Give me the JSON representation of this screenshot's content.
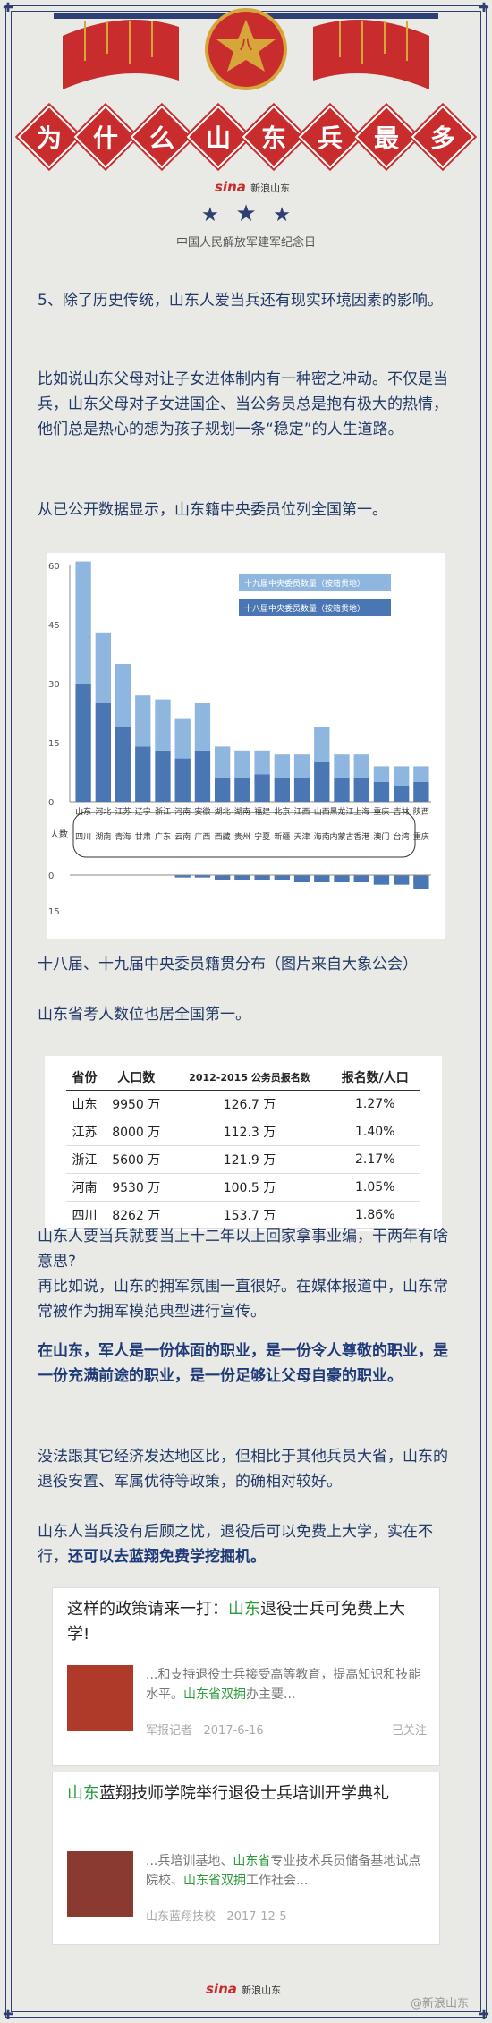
{
  "header": {
    "badge_text": "八",
    "title_chars": [
      "为",
      "什",
      "么",
      "山",
      "东",
      "兵",
      "最",
      "多"
    ],
    "sina_logo": "sina",
    "sina_logo_sub": "新浪山东",
    "subtitle": "中国人民解放军建军纪念日"
  },
  "paragraphs": {
    "p1": "5、除了历史传统，山东人爱当兵还有现实环境因素的影响。",
    "p2": "比如说山东父母对让子女进体制内有一种密之冲动。不仅是当兵，山东父母对子女进国企、当公务员总是抱有极大的热情，他们总是热心的想为孩子规划一条“稳定”的人生道路。",
    "p3": "从已公开数据显示，山东籍中央委员位列全国第一。",
    "p4": "十八届、十九届中央委员籍贯分布（图片来自大象公会）",
    "p5": "山东省考人数位也居全国第一。",
    "p6": "山东人要当兵就要当上十二年以上回家拿事业编，干两年有啥意思?",
    "p7": "再比如说，山东的拥军氛围一直很好。在媒体报道中，山东常常被作为拥军模范典型进行宣传。",
    "p8": "在山东，军人是一份体面的职业，是一份令人尊敬的职业，是一份充满前途的职业，是一份足够让父母自豪的职业。",
    "p9": "没法跟其它经济发达地区比，但相比于其他兵员大省，山东的退役安置、军属优待等政策，的确相对较好。",
    "p10a": "山东人当兵没有后顾之忧，退役后可以免费上大学，实在不行，",
    "p10b": "还可以去蓝翔免费学挖掘机。"
  },
  "chart_data": {
    "type": "bar",
    "legend": [
      "十九届中央委员数量（按籍贯地）",
      "十八届中央委员数量（按籍贯地）"
    ],
    "ylabel": "人数",
    "ylim_top": [
      0,
      60
    ],
    "ylim_bottom": [
      0,
      15
    ],
    "y_ticks_top": [
      "60",
      "45",
      "30",
      "15",
      "0"
    ],
    "y_ticks_bottom": [
      "0",
      "15"
    ],
    "categories": [
      "山东",
      "河北",
      "江苏",
      "辽宁",
      "浙江",
      "河南",
      "安徽",
      "湖北",
      "湖南",
      "福建",
      "北京",
      "江西",
      "山西",
      "黑龙江",
      "上海",
      "重庆",
      "吉林",
      "陕西"
    ],
    "series": [
      {
        "name": "十九届中央委员数量（按籍贯地）",
        "values": [
          31,
          18,
          16,
          13,
          13,
          10,
          12,
          8,
          7,
          6,
          6,
          6,
          9,
          6,
          6,
          4,
          5,
          4
        ]
      },
      {
        "name": "十八届中央委员数量（按籍贯地）",
        "values": [
          30,
          25,
          19,
          14,
          13,
          11,
          13,
          6,
          6,
          7,
          6,
          6,
          10,
          6,
          6,
          5,
          4,
          5
        ]
      }
    ],
    "bottom_categories": [
      "四川",
      "湖南",
      "青海",
      "甘肃",
      "广东",
      "云南",
      "广西",
      "西藏",
      "贵州",
      "宁夏",
      "新疆",
      "天津",
      "海南",
      "内蒙古",
      "香港",
      "澳门",
      "台湾",
      "重庆"
    ],
    "bottom_values": [
      0,
      0,
      0,
      0,
      0,
      1,
      1,
      2,
      2,
      2,
      2,
      3,
      3,
      3,
      3,
      4,
      4,
      6
    ],
    "colors": {
      "s19": "#8fb6de",
      "s18": "#4b76b4"
    }
  },
  "table": {
    "headers": [
      "省份",
      "人口数",
      "2012-2015 公务员报名数",
      "报名数/人口"
    ],
    "rows": [
      [
        "山东",
        "9950 万",
        "126.7 万",
        "1.27%"
      ],
      [
        "江苏",
        "8000 万",
        "112.3 万",
        "1.40%"
      ],
      [
        "浙江",
        "5600 万",
        "121.9 万",
        "2.17%"
      ],
      [
        "河南",
        "9530 万",
        "100.5 万",
        "1.05%"
      ],
      [
        "四川",
        "8262 万",
        "153.7 万",
        "1.86%"
      ]
    ]
  },
  "cards": [
    {
      "title_pre": "这样的政策请来一打：",
      "title_hl": "山东",
      "title_post": "退役士兵可免费上大学!",
      "desc_pre": "...和支持退役士兵接受高等教育，提高知识和技能水平。",
      "desc_hl": "山东省双拥",
      "desc_post": "办主要...",
      "source": "军报记者",
      "date": "2017-6-16",
      "status": "已关注"
    },
    {
      "title_hl": "山东",
      "title_post": "蓝翔技师学院举行退役士兵培训开学典礼",
      "desc_pre": "...兵培训基地、",
      "desc_hl": "山东省",
      "desc_mid": "专业技术兵员储备基地试点院校、",
      "desc_hl2": "山东省双拥",
      "desc_post": "工作社会...",
      "source": "山东蓝翔技校",
      "date": "2017-12-5"
    }
  ],
  "footer": {
    "sina_logo": "sina",
    "sina_logo_sub": "新浪山东",
    "watermark": "@新浪山东"
  }
}
